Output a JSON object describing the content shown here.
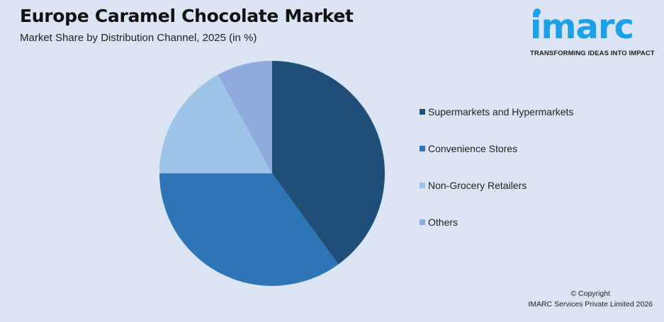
{
  "header": {
    "title": "Europe Caramel Chocolate Market",
    "subtitle": "Market Share by Distribution Channel, 2025 (in %)"
  },
  "logo": {
    "word": "imarc",
    "tagline": "TRANSFORMING IDEAS INTO IMPACT",
    "color": "#1da1e6"
  },
  "footer": {
    "copyright": "© Copyright",
    "company": "IMARC Services Private Limited 2026"
  },
  "legend": [
    {
      "label": "Supermarkets and Hypermarkets",
      "color": "#1f4e79"
    },
    {
      "label": "Convenience Stores",
      "color": "#2e75b6"
    },
    {
      "label": "Non-Grocery Retailers",
      "color": "#9dc3e6"
    },
    {
      "label": "Others",
      "color": "#8faadc"
    }
  ],
  "chart_data": {
    "type": "pie",
    "title": "Europe Caramel Chocolate Market",
    "subtitle": "Market Share by Distribution Channel, 2025 (in %)",
    "categories": [
      "Supermarkets and Hypermarkets",
      "Convenience Stores",
      "Non-Grocery Retailers",
      "Others"
    ],
    "values": [
      40,
      35,
      17,
      8
    ],
    "colors": [
      "#1f4e79",
      "#2e75b6",
      "#9dc3e6",
      "#8faadc"
    ],
    "start_angle": "12 o'clock, clockwise",
    "legend_position": "right",
    "data_labels": false
  }
}
